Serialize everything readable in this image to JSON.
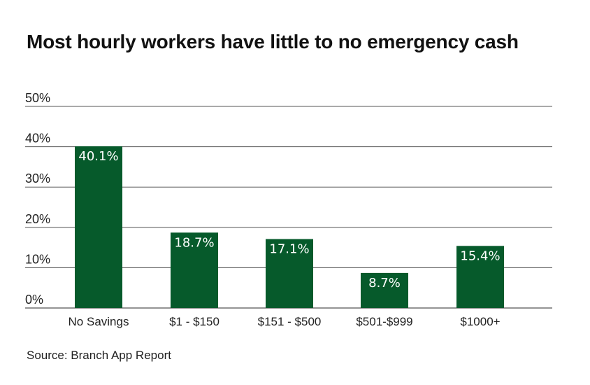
{
  "title": "Most hourly workers have little to no emergency cash",
  "source": "Source: Branch App Report",
  "colors": {
    "bar": "#065a2b",
    "grid": "#555555",
    "text": "#222222",
    "label": "#ffffff"
  },
  "chart_data": {
    "type": "bar",
    "title": "Most hourly workers have little to no emergency cash",
    "categories": [
      "No Savings",
      "$1 - $150",
      "$151 - $500",
      "$501-$999",
      "$1000+"
    ],
    "values": [
      40.1,
      18.7,
      17.1,
      8.7,
      15.4
    ],
    "value_labels": [
      "40.1%",
      "18.7%",
      "17.1%",
      "8.7%",
      "15.4%"
    ],
    "yticks": [
      0,
      10,
      20,
      30,
      40,
      50
    ],
    "ytick_labels": [
      "0%",
      "10%",
      "20%",
      "30%",
      "40%",
      "50%"
    ],
    "ylim": [
      0,
      50
    ],
    "xlabel": "",
    "ylabel": "",
    "grid": true
  }
}
